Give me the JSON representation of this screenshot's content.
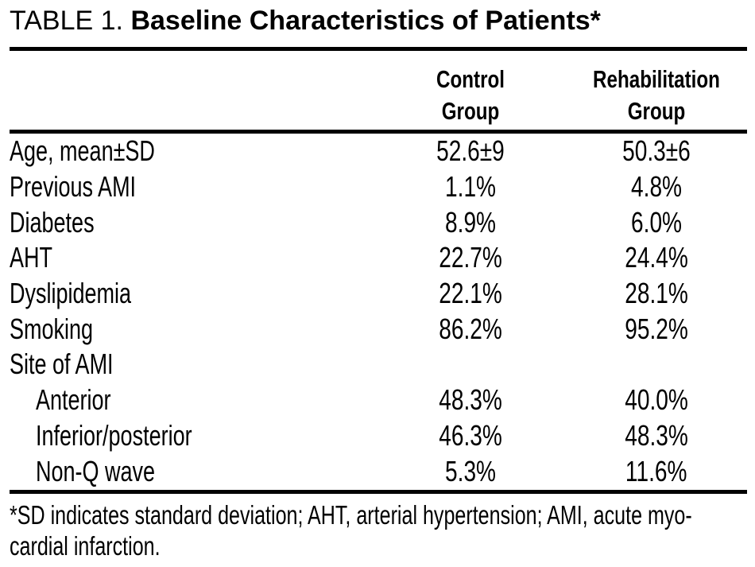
{
  "table": {
    "title_prefix": "TABLE 1.",
    "title_main": "Baseline Characteristics of Patients*",
    "columns": [
      {
        "line1": "Control",
        "line2": "Group"
      },
      {
        "line1": "Rehabilitation",
        "line2": "Group"
      }
    ],
    "rows": [
      {
        "label": "Age, mean±SD",
        "control": "52.6±9",
        "rehab": "50.3±6",
        "indent": false
      },
      {
        "label": "Previous AMI",
        "control": "1.1%",
        "rehab": "4.8%",
        "indent": false
      },
      {
        "label": "Diabetes",
        "control": "8.9%",
        "rehab": "6.0%",
        "indent": false
      },
      {
        "label": "AHT",
        "control": "22.7%",
        "rehab": "24.4%",
        "indent": false
      },
      {
        "label": "Dyslipidemia",
        "control": "22.1%",
        "rehab": "28.1%",
        "indent": false
      },
      {
        "label": "Smoking",
        "control": "86.2%",
        "rehab": "95.2%",
        "indent": false
      },
      {
        "label": "Site of AMI",
        "control": "",
        "rehab": "",
        "indent": false
      },
      {
        "label": "Anterior",
        "control": "48.3%",
        "rehab": "40.0%",
        "indent": true
      },
      {
        "label": "Inferior/posterior",
        "control": "46.3%",
        "rehab": "48.3%",
        "indent": true
      },
      {
        "label": "Non-Q wave",
        "control": "5.3%",
        "rehab": "11.6%",
        "indent": true
      }
    ],
    "footnote_line1": "*SD indicates standard deviation; AHT, arterial hypertension; AMI, acute myo-",
    "footnote_line2": "cardial infarction.",
    "colors": {
      "text": "#000000",
      "background": "#ffffff",
      "rule": "#000000"
    }
  }
}
